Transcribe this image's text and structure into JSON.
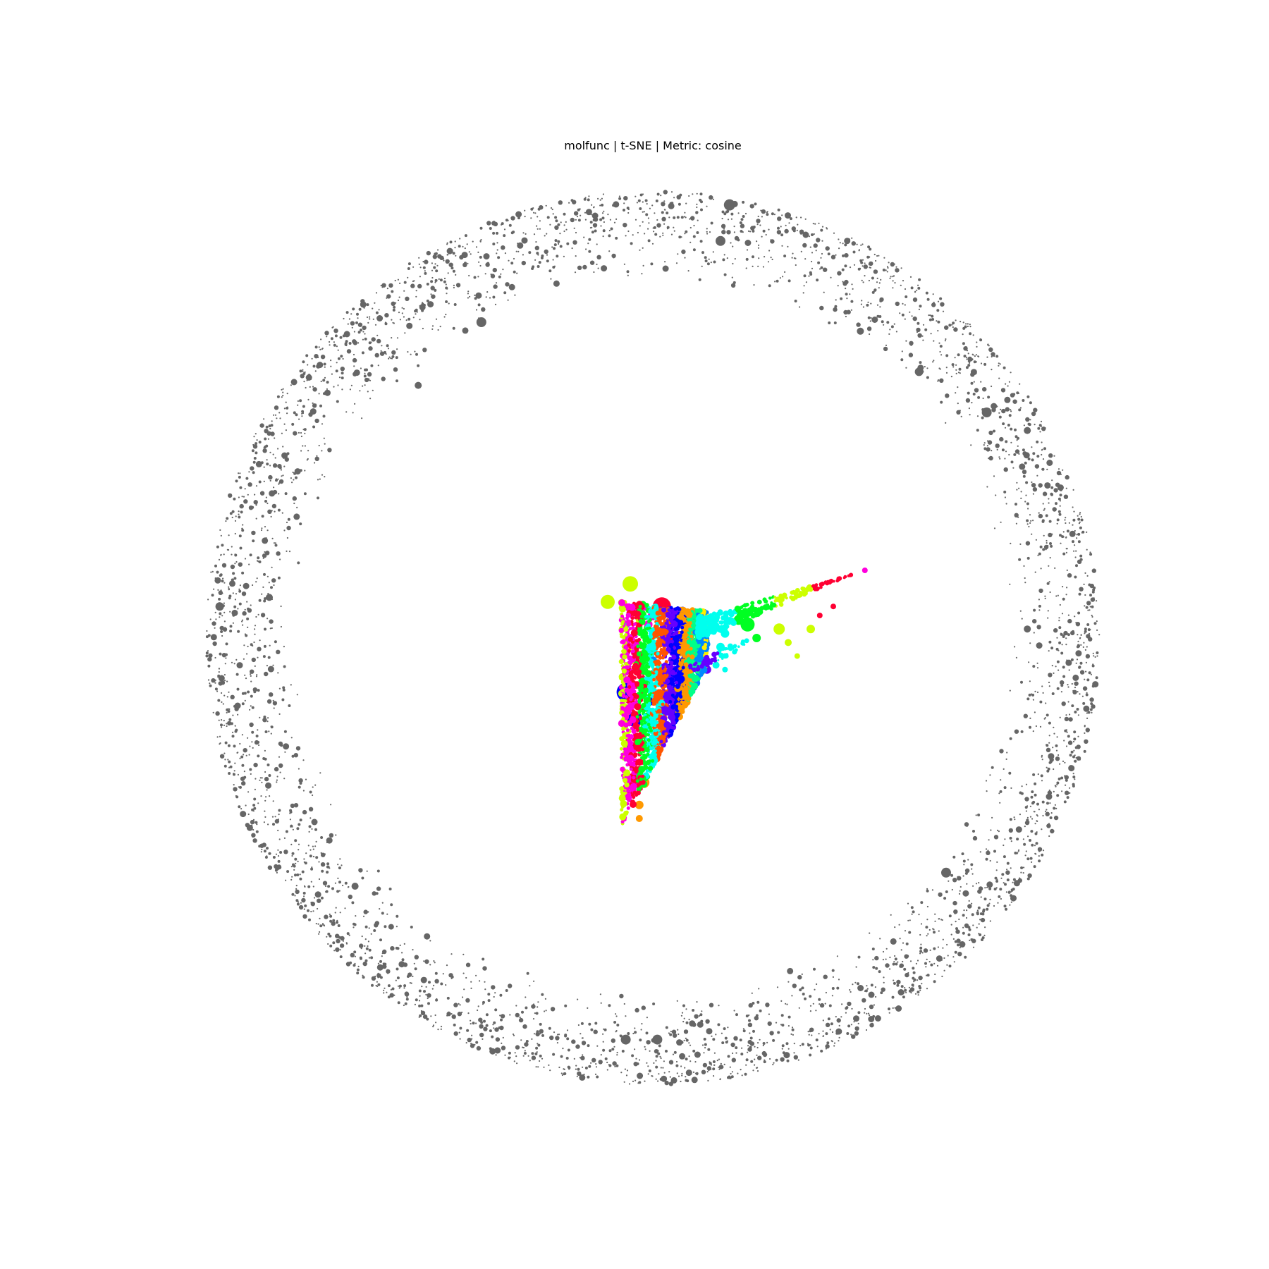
{
  "title": "molfunc | t-SNE | Metric: cosine",
  "chart_data": {
    "type": "scatter",
    "title": "molfunc | t-SNE | Metric: cosine",
    "xlabel": "",
    "ylabel": "",
    "axes_visible": false,
    "grid": false,
    "legend": "none",
    "xlim": [
      -1.0,
      1.0
    ],
    "ylim": [
      -1.0,
      1.0
    ],
    "marker_size_meaning": "varies per point",
    "series": [
      {
        "color": "#666666",
        "shape": "annulus",
        "center": [
          0.0,
          0.0
        ],
        "inner_radius": 0.79,
        "outer_radius": 0.99,
        "approx_point_count": 4000,
        "highlight_points": [
          [
            0.17,
            0.96,
            8
          ],
          [
            0.15,
            0.88,
            7
          ],
          [
            -0.38,
            0.7,
            7
          ],
          [
            -0.52,
            0.56,
            5
          ],
          [
            0.59,
            0.59,
            6
          ],
          [
            0.74,
            0.5,
            7
          ],
          [
            0.46,
            0.68,
            5
          ],
          [
            -0.96,
            0.07,
            6
          ],
          [
            0.83,
            0.02,
            5
          ],
          [
            0.65,
            -0.52,
            7
          ],
          [
            -0.66,
            -0.55,
            5
          ],
          [
            -0.58,
            -0.64,
            4
          ],
          [
            -0.06,
            -0.89,
            7
          ],
          [
            0.01,
            -0.89,
            7
          ],
          [
            -0.85,
            0.09,
            5
          ],
          [
            0.83,
            0.46,
            5
          ]
        ]
      },
      {
        "color": "#ccff00",
        "cluster": "upper-left",
        "points": [
          [
            -0.05,
            0.12,
            11
          ],
          [
            -0.1,
            0.08,
            10
          ],
          [
            -0.03,
            0.04,
            5
          ],
          [
            0.28,
            0.02,
            8
          ],
          [
            0.3,
            -0.01,
            5
          ],
          [
            0.32,
            -0.04,
            4
          ],
          [
            0.35,
            0.02,
            6
          ]
        ]
      },
      {
        "color": "#ff00dd",
        "cluster": "core",
        "points": [
          [
            -0.04,
            0.06,
            6
          ],
          [
            -0.02,
            0.07,
            6
          ],
          [
            0.0,
            0.05,
            7
          ],
          [
            -0.01,
            0.03,
            6
          ],
          [
            0.47,
            0.15,
            4
          ]
        ]
      },
      {
        "color": "#ff0033",
        "cluster": "core",
        "points": [
          [
            0.02,
            0.07,
            13
          ],
          [
            0.06,
            0.0,
            10
          ],
          [
            0.04,
            -0.01,
            8
          ],
          [
            0.4,
            0.07,
            4
          ],
          [
            0.37,
            0.05,
            4
          ]
        ]
      },
      {
        "color": "#00ff22",
        "cluster": "tail",
        "points": [
          [
            0.21,
            0.03,
            10
          ],
          [
            0.23,
            0.0,
            6
          ],
          [
            0.19,
            0.04,
            7
          ],
          [
            0.02,
            0.05,
            6
          ],
          [
            -0.02,
            -0.2,
            5
          ]
        ]
      },
      {
        "color": "#00ffee",
        "cluster": "tail",
        "points": [
          [
            0.13,
            0.02,
            6
          ],
          [
            0.16,
            0.01,
            6
          ],
          [
            0.15,
            -0.02,
            6
          ],
          [
            0.14,
            -0.06,
            5
          ],
          [
            0.16,
            -0.07,
            4
          ]
        ]
      },
      {
        "color": "#ff5500",
        "cluster": "core",
        "points": [
          [
            0.07,
            0.04,
            6
          ],
          [
            0.09,
            0.02,
            5
          ]
        ]
      },
      {
        "color": "#6600ff",
        "cluster": "core",
        "points": [
          [
            0.1,
            -0.04,
            7
          ],
          [
            0.12,
            -0.07,
            6
          ],
          [
            0.09,
            -0.11,
            5
          ]
        ]
      },
      {
        "color": "#0000ff",
        "cluster": "left",
        "points": [
          [
            -0.06,
            -0.12,
            13
          ],
          [
            -0.04,
            -0.18,
            11
          ],
          [
            -0.05,
            -0.24,
            6
          ],
          [
            0.0,
            -0.14,
            6
          ]
        ]
      },
      {
        "color": "#ff9900",
        "cluster": "bottom",
        "points": [
          [
            -0.03,
            -0.37,
            6
          ],
          [
            -0.02,
            -0.32,
            8
          ],
          [
            -0.03,
            -0.4,
            5
          ]
        ]
      },
      {
        "color": "#00ff88",
        "cluster": "core",
        "points": [
          [
            -0.06,
            0.03,
            6
          ],
          [
            0.04,
            -0.12,
            6
          ]
        ]
      },
      {
        "color": "#0088ff",
        "cluster": "core",
        "points": [
          [
            0.0,
            -0.05,
            6
          ],
          [
            0.02,
            -0.22,
            6
          ]
        ]
      },
      {
        "color": "#ffee00",
        "cluster": "core",
        "points": [
          [
            -0.04,
            -0.05,
            6
          ],
          [
            -0.05,
            -0.02,
            5
          ]
        ]
      }
    ]
  }
}
